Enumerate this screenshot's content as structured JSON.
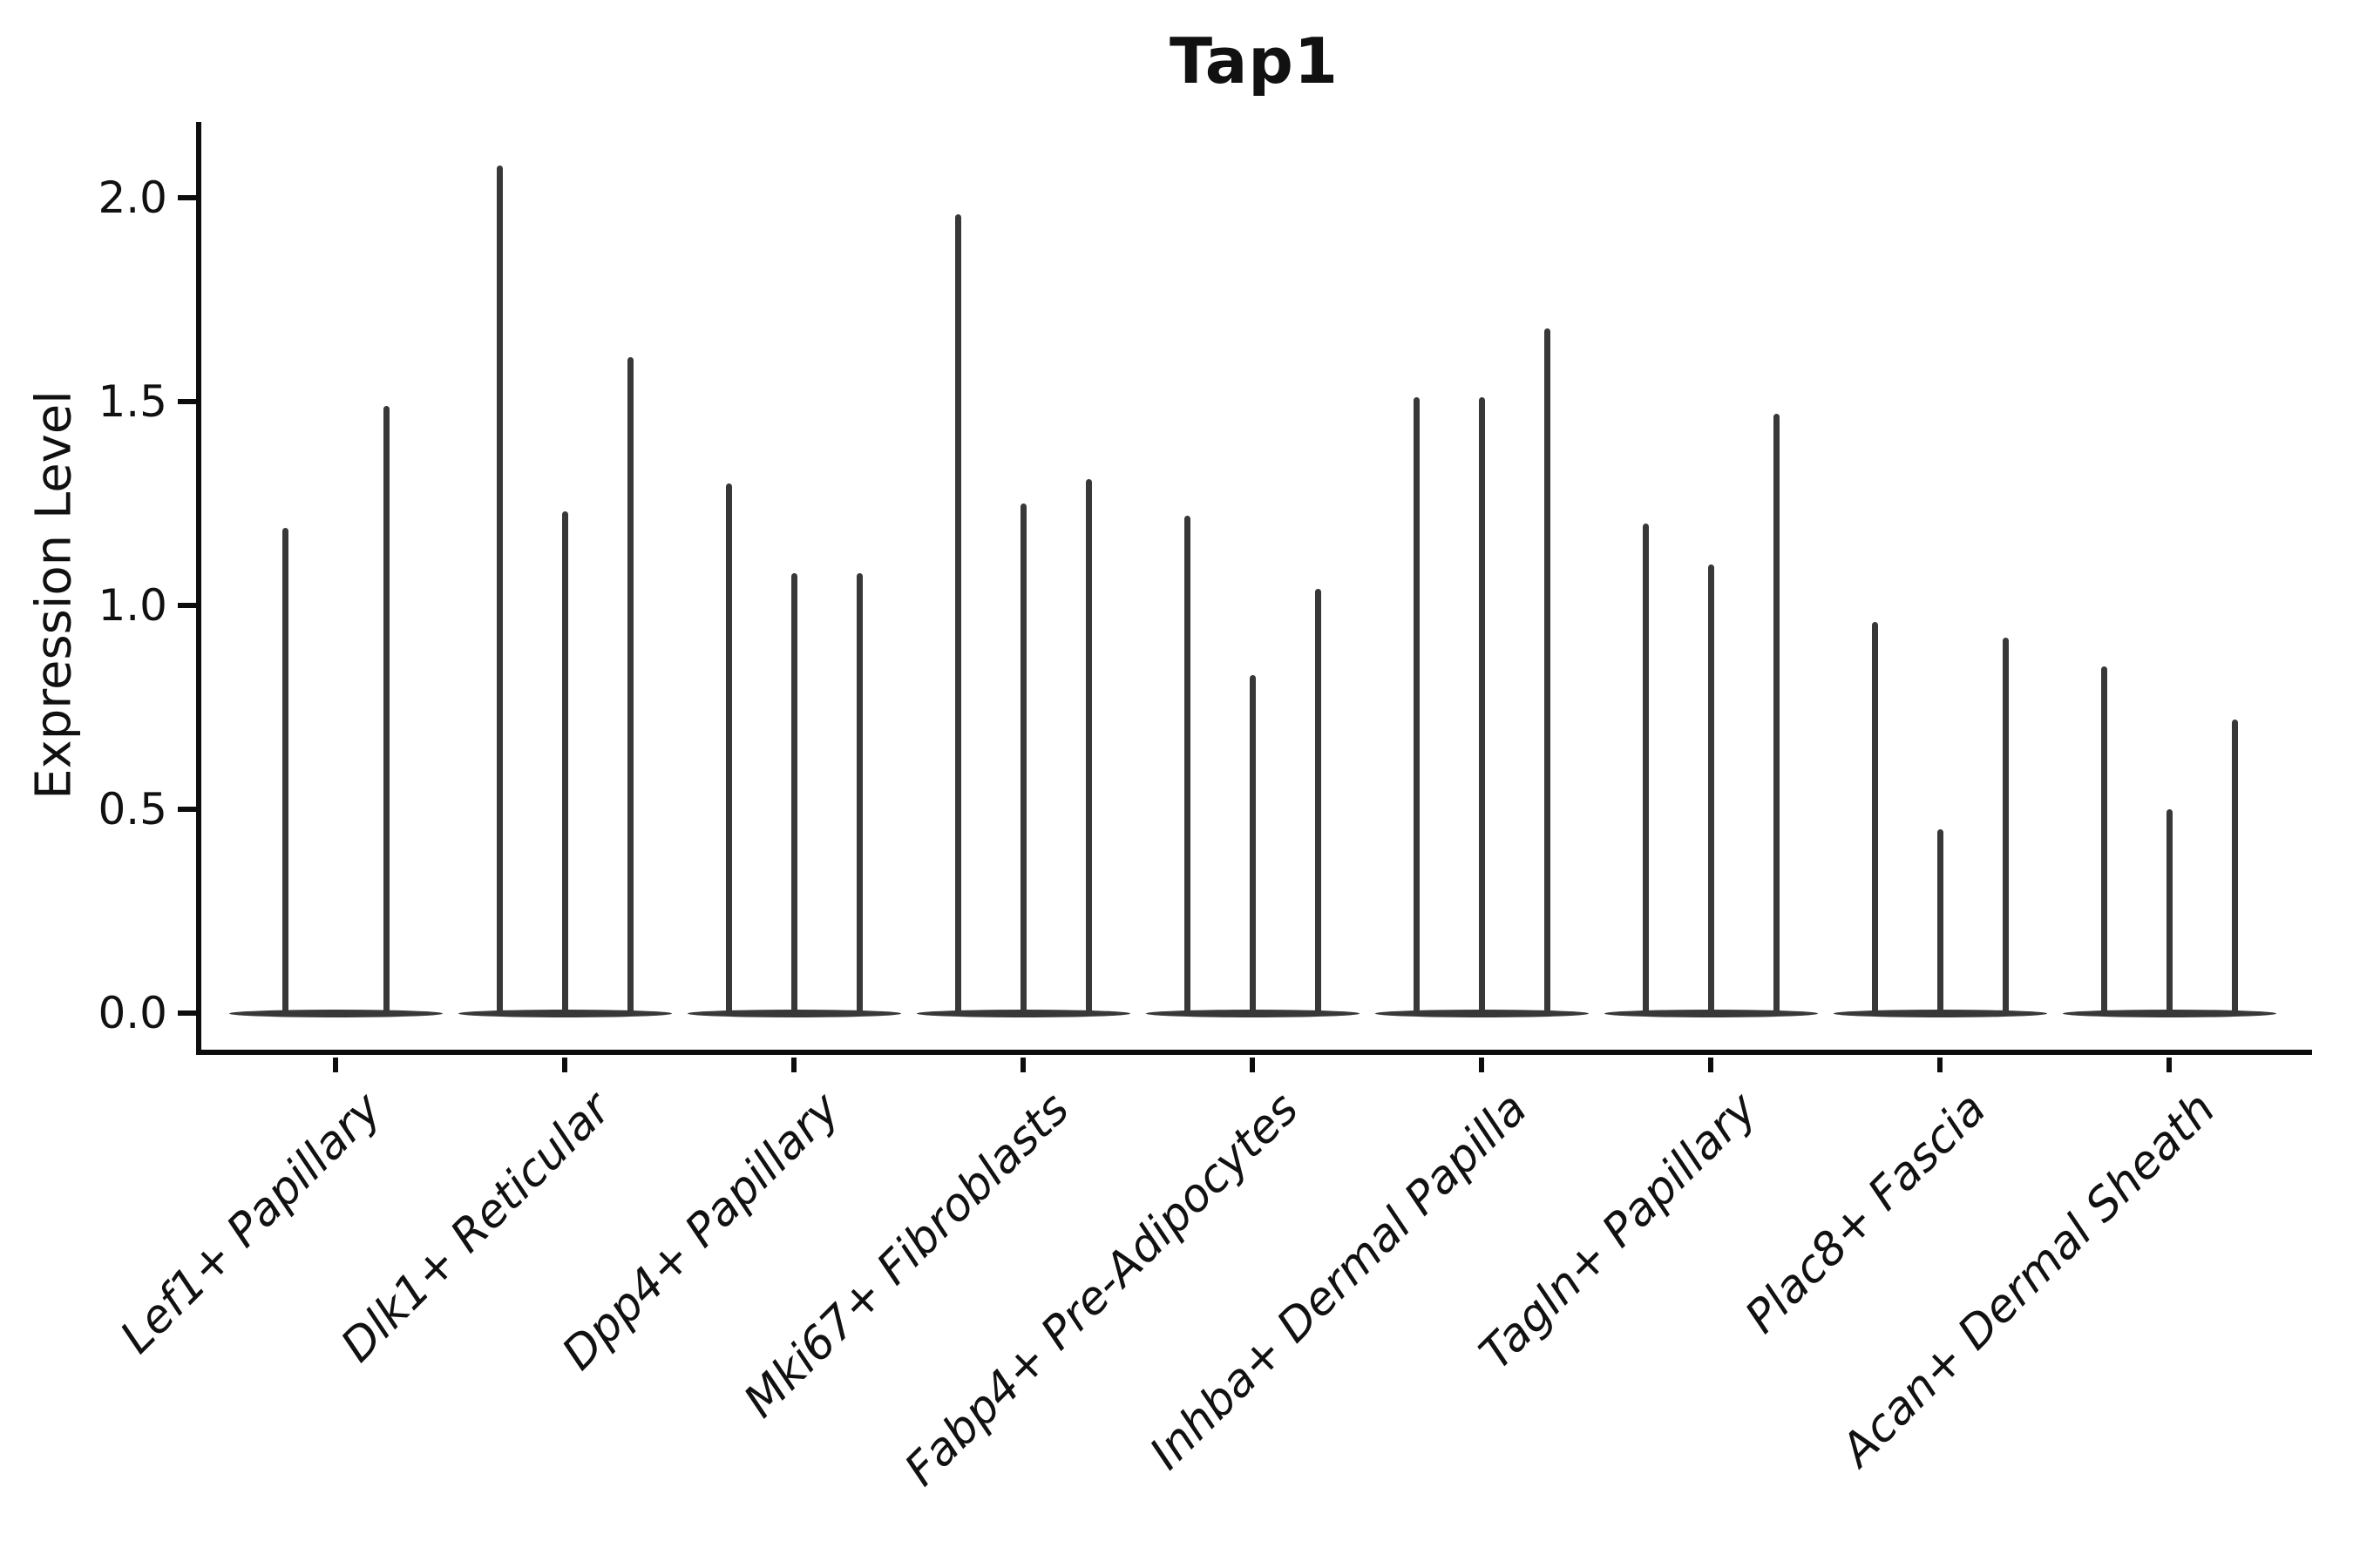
{
  "chart_data": {
    "type": "violin",
    "title": "Tap1",
    "ylabel": "Expression Level",
    "xlabel": "",
    "grid": false,
    "legend": null,
    "ylim": [
      -0.1,
      2.19
    ],
    "baseline_value": 0.0,
    "yticks": [
      {
        "label": "0.0",
        "value": 0.0
      },
      {
        "label": "0.5",
        "value": 0.5
      },
      {
        "label": "1.0",
        "value": 1.0
      },
      {
        "label": "1.5",
        "value": 1.5
      },
      {
        "label": "2.0",
        "value": 2.0
      }
    ],
    "categories": [
      {
        "label": "Lef1+ Papillary",
        "violins": [
          {
            "offset": -58,
            "max": 1.19
          },
          {
            "offset": 58,
            "max": 1.49
          }
        ]
      },
      {
        "label": "Dlk1+ Reticular",
        "violins": [
          {
            "offset": -75,
            "max": 2.08
          },
          {
            "offset": 0,
            "max": 1.23
          },
          {
            "offset": 75,
            "max": 1.61
          }
        ]
      },
      {
        "label": "Dpp4+ Papillary",
        "violins": [
          {
            "offset": -75,
            "max": 1.3
          },
          {
            "offset": 0,
            "max": 1.08
          },
          {
            "offset": 75,
            "max": 1.08
          }
        ]
      },
      {
        "label": "Mki67+ Fibroblasts",
        "violins": [
          {
            "offset": -75,
            "max": 1.96
          },
          {
            "offset": 0,
            "max": 1.25
          },
          {
            "offset": 75,
            "max": 1.31
          }
        ]
      },
      {
        "label": "Fabp4+ Pre-Adipocytes",
        "violins": [
          {
            "offset": -75,
            "max": 1.22
          },
          {
            "offset": 0,
            "max": 0.83
          },
          {
            "offset": 75,
            "max": 1.04
          }
        ]
      },
      {
        "label": "Inhba+ Dermal Papilla",
        "violins": [
          {
            "offset": -75,
            "max": 1.51
          },
          {
            "offset": 0,
            "max": 1.51
          },
          {
            "offset": 75,
            "max": 1.68
          }
        ]
      },
      {
        "label": "Tagln+ Papillary",
        "violins": [
          {
            "offset": -75,
            "max": 1.2
          },
          {
            "offset": 0,
            "max": 1.1
          },
          {
            "offset": 75,
            "max": 1.47
          }
        ]
      },
      {
        "label": "Plac8+ Fascia",
        "violins": [
          {
            "offset": -75,
            "max": 0.96
          },
          {
            "offset": 0,
            "max": 0.45
          },
          {
            "offset": 75,
            "max": 0.92
          }
        ]
      },
      {
        "label": "Acan+ Dermal Sheath",
        "violins": [
          {
            "offset": -75,
            "max": 0.85
          },
          {
            "offset": 0,
            "max": 0.5
          },
          {
            "offset": 75,
            "max": 0.72
          }
        ]
      }
    ],
    "colors": {
      "violin": "#383838",
      "axis": "#0d0d0d",
      "text": "#111111",
      "background": "#ffffff"
    }
  }
}
